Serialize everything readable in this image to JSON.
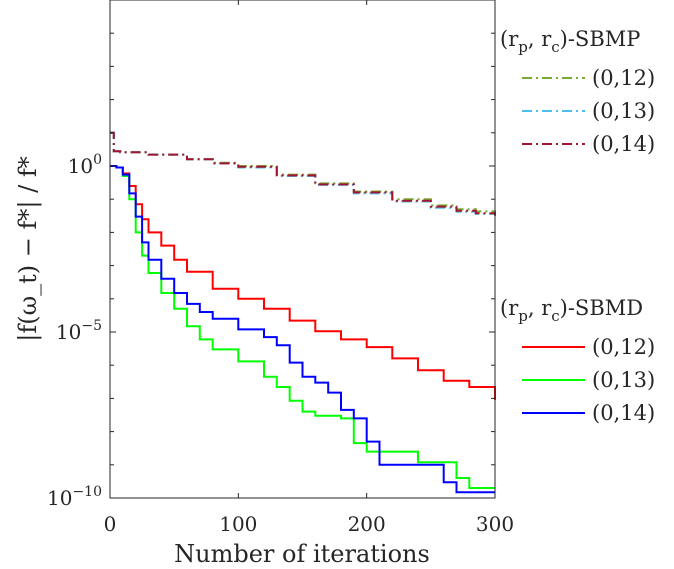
{
  "chart_data": {
    "type": "line",
    "yscale": "log",
    "xlabel": "Number of iterations",
    "ylabel": "|f(ω_t) − f*| / f*",
    "xlim": [
      0,
      300
    ],
    "ylim": [
      1e-10,
      100000.0
    ],
    "x_ticks": [
      0,
      100,
      200,
      300
    ],
    "x_tick_labels": [
      "0",
      "100",
      "200",
      "300"
    ],
    "y_ticks": [
      1e-10,
      1e-05,
      1
    ],
    "y_tick_labels": [
      {
        "base": "10",
        "exp": "−10"
      },
      {
        "base": "10",
        "exp": "−5"
      },
      {
        "base": "10",
        "exp": "0"
      }
    ],
    "legend_groups": [
      {
        "title_main": "(r",
        "title_p": "p",
        "title_mid": ", r",
        "title_c": "c",
        "title_end": ")-SBMP",
        "position": "upper-right-outside",
        "entries": [
          "(0,12)",
          "(0,13)",
          "(0,14)"
        ]
      },
      {
        "title_main": "(r",
        "title_p": "p",
        "title_mid": ", r",
        "title_c": "c",
        "title_end": ")-SBMD",
        "position": "middle-right-outside",
        "entries": [
          "(0,12)",
          "(0,13)",
          "(0,14)"
        ]
      }
    ],
    "series": [
      {
        "name": "SBMP (0,12)",
        "group": 0,
        "color": "#77AC30",
        "dash": "10,4,2,4",
        "width": 2,
        "x": [
          0,
          3,
          8,
          30,
          60,
          80,
          100,
          130,
          160,
          190,
          220,
          250,
          270,
          285,
          300
        ],
        "y": [
          10,
          2.8,
          2.6,
          2.2,
          1.6,
          1.25,
          1.0,
          0.55,
          0.3,
          0.17,
          0.1,
          0.065,
          0.05,
          0.043,
          0.038
        ]
      },
      {
        "name": "SBMP (0,13)",
        "group": 0,
        "color": "#4DBEEE",
        "dash": "10,4,2,4",
        "width": 2,
        "x": [
          0,
          3,
          8,
          30,
          60,
          80,
          100,
          130,
          160,
          190,
          220,
          250,
          270,
          285,
          300
        ],
        "y": [
          10,
          2.8,
          2.6,
          2.2,
          1.6,
          1.2,
          0.9,
          0.5,
          0.27,
          0.15,
          0.085,
          0.055,
          0.042,
          0.036,
          0.032
        ]
      },
      {
        "name": "SBMP (0,14)",
        "group": 0,
        "color": "#A2142F",
        "dash": "10,4,2,4",
        "width": 2,
        "x": [
          0,
          3,
          8,
          30,
          60,
          80,
          100,
          130,
          160,
          190,
          220,
          250,
          270,
          285,
          300
        ],
        "y": [
          10,
          2.8,
          2.6,
          2.2,
          1.6,
          1.2,
          0.95,
          0.52,
          0.28,
          0.16,
          0.09,
          0.06,
          0.045,
          0.038,
          0.032
        ]
      },
      {
        "name": "SBMD (0,12)",
        "group": 1,
        "color": "#FF0000",
        "dash": "",
        "width": 2,
        "x": [
          0,
          5,
          10,
          15,
          20,
          25,
          30,
          40,
          50,
          60,
          80,
          100,
          120,
          140,
          160,
          180,
          200,
          220,
          240,
          260,
          280,
          300
        ],
        "y": [
          1.0,
          0.9,
          0.6,
          0.25,
          0.07,
          0.025,
          0.01,
          0.004,
          0.0015,
          0.00065,
          0.0002,
          0.0001,
          5e-05,
          2.2e-05,
          1.05e-05,
          6e-06,
          3.5e-06,
          1.6e-06,
          7e-07,
          3.4e-07,
          2.2e-07,
          9e-08
        ]
      },
      {
        "name": "SBMD (0,13)",
        "group": 1,
        "color": "#00FF00",
        "dash": "",
        "width": 2,
        "x": [
          0,
          5,
          10,
          15,
          20,
          25,
          30,
          40,
          50,
          60,
          70,
          80,
          100,
          120,
          130,
          140,
          150,
          160,
          170,
          180,
          190,
          200,
          230,
          240,
          250,
          270,
          280,
          300
        ],
        "y": [
          1.0,
          0.9,
          0.5,
          0.1,
          0.01,
          0.002,
          0.0006,
          0.00015,
          5e-05,
          1.5e-05,
          6e-06,
          3e-06,
          1.3e-06,
          4.5e-07,
          2.2e-07,
          8.5e-08,
          4e-08,
          3e-08,
          3e-08,
          2.5e-08,
          4.5e-09,
          2.5e-09,
          2.5e-09,
          1.2e-09,
          1.2e-09,
          4e-10,
          2e-10,
          2e-10
        ]
      },
      {
        "name": "SBMD (0,14)",
        "group": 1,
        "color": "#0000FF",
        "dash": "",
        "width": 2,
        "x": [
          0,
          5,
          10,
          15,
          20,
          25,
          30,
          40,
          50,
          60,
          70,
          80,
          100,
          120,
          130,
          140,
          150,
          160,
          170,
          180,
          190,
          200,
          210,
          230,
          240,
          260,
          270,
          285,
          300
        ],
        "y": [
          1.0,
          0.9,
          0.55,
          0.15,
          0.03,
          0.005,
          0.0015,
          0.0004,
          0.00015,
          7e-05,
          4e-05,
          2.5e-05,
          1.2e-05,
          7e-06,
          4e-06,
          1.2e-06,
          4.5e-07,
          3e-07,
          1.5e-07,
          4.5e-08,
          2.5e-08,
          5e-09,
          1e-09,
          1e-09,
          1e-09,
          3e-10,
          1.5e-10,
          1.5e-10,
          1.5e-10
        ]
      }
    ]
  }
}
